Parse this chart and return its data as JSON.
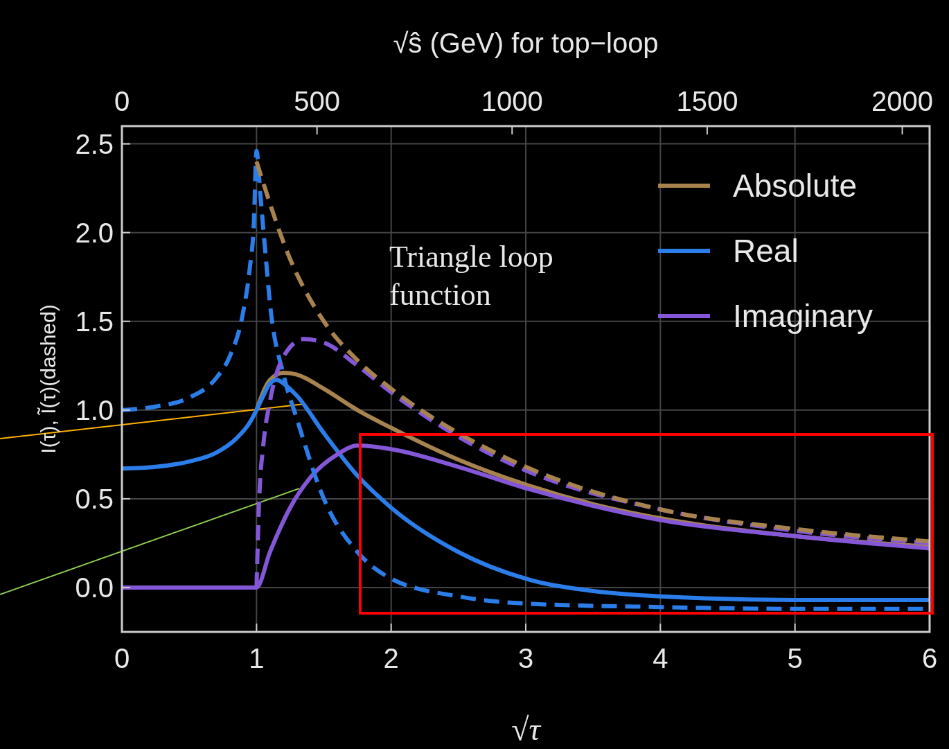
{
  "chart_data": {
    "type": "line",
    "xlabel": "√τ",
    "ylabel": "I(τ), Ĩ(τ)(dashed)",
    "x2label": "√ŝ (GeV) for top−loop",
    "xlim": [
      0,
      6
    ],
    "xticks": [
      0,
      1,
      2,
      3,
      4,
      5,
      6
    ],
    "x2lim": [
      0,
      2070
    ],
    "x2ticks": [
      0,
      500,
      1000,
      1500,
      2000
    ],
    "ylim": [
      -0.25,
      2.6
    ],
    "yticks": [
      {
        "value": 0,
        "label": "0.0"
      },
      0.5,
      {
        "value": 1,
        "label": "1.0"
      },
      1.5,
      {
        "value": 2,
        "label": "2.0"
      },
      2.5
    ],
    "grid": true,
    "legend": "top right",
    "annotations": [
      "Triangle loop function"
    ],
    "series": [
      {
        "name": "Absolute",
        "color": "#a8834e",
        "line_style": "solid",
        "x": [
          1.0,
          1.1,
          1.2,
          1.3,
          1.5,
          1.75,
          2,
          2.5,
          3,
          3.5,
          4,
          5,
          6
        ],
        "values": [
          1.0,
          1.17,
          1.21,
          1.2,
          1.12,
          1.0,
          0.9,
          0.72,
          0.58,
          0.47,
          0.39,
          0.29,
          0.23
        ]
      },
      {
        "name": "Real",
        "color": "#2b7de9",
        "line_style": "solid",
        "x": [
          0,
          0.25,
          0.5,
          0.7,
          0.85,
          0.95,
          1.0,
          1.05,
          1.1,
          1.15,
          1.2,
          1.3,
          1.5,
          1.75,
          2,
          2.5,
          3,
          3.5,
          4,
          5,
          6
        ],
        "values": [
          0.67,
          0.68,
          0.71,
          0.76,
          0.84,
          0.93,
          1.0,
          1.08,
          1.15,
          1.17,
          1.15,
          1.08,
          0.87,
          0.63,
          0.45,
          0.2,
          0.05,
          -0.02,
          -0.05,
          -0.07,
          -0.07
        ]
      },
      {
        "name": "Imaginary",
        "color": "#8457d8",
        "line_style": "solid",
        "x": [
          0,
          1.0,
          1.1,
          1.25,
          1.4,
          1.6,
          1.75,
          2,
          2.5,
          3,
          3.5,
          4,
          5,
          6
        ],
        "values": [
          0,
          0,
          0.2,
          0.45,
          0.62,
          0.75,
          0.8,
          0.78,
          0.68,
          0.56,
          0.46,
          0.38,
          0.29,
          0.22
        ]
      },
      {
        "color": "#2b7de9",
        "line_style": "dashed",
        "x": [
          0,
          0.25,
          0.5,
          0.7,
          0.8,
          0.9,
          0.95,
          0.98,
          1.0,
          1.03,
          1.07,
          1.1,
          1.2,
          1.3,
          1.5,
          1.75,
          2,
          2.5,
          3,
          4,
          5,
          6
        ],
        "values": [
          1.0,
          1.02,
          1.07,
          1.18,
          1.3,
          1.55,
          1.8,
          2.05,
          2.46,
          2.2,
          1.85,
          1.6,
          1.2,
          0.95,
          0.5,
          0.2,
          0.05,
          -0.05,
          -0.09,
          -0.11,
          -0.12,
          -0.12
        ]
      },
      {
        "color": "#8457d8",
        "line_style": "dashed",
        "x": [
          1.0,
          1.02,
          1.05,
          1.1,
          1.2,
          1.35,
          1.5,
          1.75,
          2,
          2.5,
          3,
          4,
          5,
          6
        ],
        "values": [
          0,
          0.5,
          0.8,
          1.05,
          1.3,
          1.4,
          1.38,
          1.25,
          1.1,
          0.85,
          0.66,
          0.44,
          0.32,
          0.25
        ]
      },
      {
        "color": "#a8834e",
        "line_style": "dashed",
        "x": [
          1.0,
          1.25,
          1.5,
          1.75,
          2,
          2.5,
          3,
          4,
          5,
          6
        ],
        "values": [
          2.4,
          1.85,
          1.5,
          1.28,
          1.12,
          0.87,
          0.68,
          0.44,
          0.33,
          0.26
        ]
      }
    ]
  }
}
